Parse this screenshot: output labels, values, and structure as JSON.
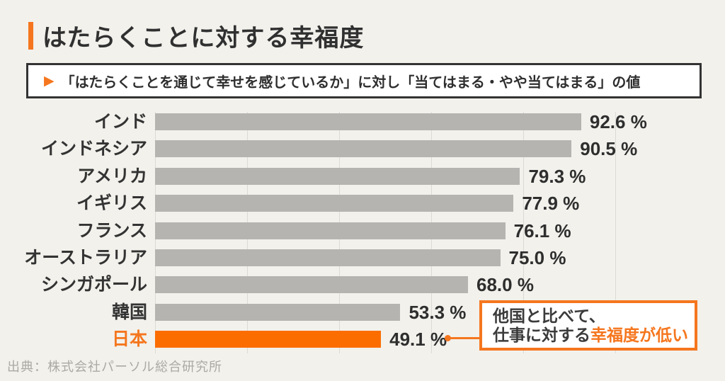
{
  "title": {
    "text": "はたらくことに対する幸福度",
    "accent_color": "#F5761E"
  },
  "subtitle": {
    "marker": "▶",
    "text": "「はたらくことを通じて幸せを感じているか」に対し「当てはまる・やや当てはまる」の値"
  },
  "chart_data": {
    "type": "bar",
    "orientation": "horizontal",
    "title": "はたらくことに対する幸福度",
    "unit": "%",
    "categories": [
      "インド",
      "インドネシア",
      "アメリカ",
      "イギリス",
      "フランス",
      "オーストラリア",
      "シンガポール",
      "韓国",
      "日本"
    ],
    "values": [
      92.6,
      90.5,
      79.3,
      77.9,
      76.1,
      75.0,
      68.0,
      53.3,
      49.1
    ],
    "value_labels": [
      "92.6 %",
      "90.5 %",
      "79.3 %",
      "77.9 %",
      "76.1 %",
      "75.0 %",
      "68.0 %",
      "53.3 %",
      "49.1 %"
    ],
    "highlight_index": 8,
    "xlim": [
      0,
      100
    ],
    "gridlines_pct": [
      0,
      20,
      40,
      60,
      80,
      100
    ],
    "grid": true,
    "legend_position": "none",
    "bar_color": "#B5B4B1",
    "highlight_color": "#FB6D01"
  },
  "annotation": {
    "line1": "他国と比べて、",
    "line2_dark": "仕事に対する",
    "line2_orange": "幸福度が低い",
    "border_color": "#F5761E",
    "target_value": "49.1 %"
  },
  "source": {
    "text": "出典：株式会社パーソル総合研究所"
  },
  "layout_colors": {
    "background": "#F2F1EC",
    "gridline": "#DCDAD4",
    "text_dark": "#333333",
    "source_gray": "#ABA9A4"
  }
}
